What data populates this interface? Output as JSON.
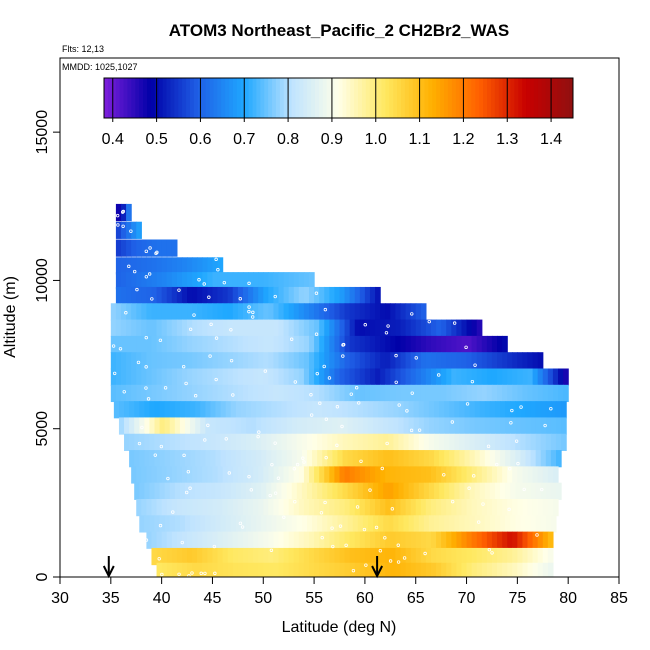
{
  "chart_data": {
    "type": "heatmap",
    "title": "ATOM3 Northeast_Pacific_2 CH2Br2_WAS",
    "flights_note": "Flts: 12,13",
    "dates_note": "MMDD: 1025,1027",
    "xlabel": "Latitude (deg N)",
    "ylabel": "Altitude (m)",
    "xlim": [
      30,
      85
    ],
    "ylim": [
      0,
      17500
    ],
    "x_ticks": [
      "30",
      "35",
      "40",
      "45",
      "50",
      "55",
      "60",
      "65",
      "70",
      "75",
      "80",
      "85"
    ],
    "y_ticks": [
      "0",
      "5000",
      "10000",
      "15000"
    ],
    "colorbar": {
      "range": [
        0.38,
        1.45
      ],
      "ticks": [
        "0.4",
        "0.5",
        "0.6",
        "0.7",
        "0.8",
        "0.9",
        "1.0",
        "1.1",
        "1.2",
        "1.3",
        "1.4"
      ],
      "colors": [
        "#7f1fdc",
        "#0000a8",
        "#1f5fe6",
        "#1fa8ff",
        "#bfe3ff",
        "#ffffe8",
        "#ffe860",
        "#ffb000",
        "#ff6000",
        "#c80000",
        "#901010"
      ]
    },
    "arrows_at_latitude": [
      34.8,
      61.2
    ],
    "layers": [
      {
        "alt": 12300,
        "lat_start": 35.5,
        "lat_end": 37.0,
        "values": [
          0.45,
          0.5,
          0.55,
          0.7
        ]
      },
      {
        "alt": 11700,
        "lat_start": 35.5,
        "lat_end": 38.0,
        "values": [
          0.55,
          0.6,
          0.65,
          0.7
        ]
      },
      {
        "alt": 11100,
        "lat_start": 35.5,
        "lat_end": 41.5,
        "values": [
          0.55,
          0.6,
          0.62,
          0.62
        ]
      },
      {
        "alt": 10500,
        "lat_start": 35.5,
        "lat_end": 46.0,
        "values": [
          0.6,
          0.62,
          0.65,
          0.7
        ]
      },
      {
        "alt": 10000,
        "lat_start": 35.5,
        "lat_end": 55.0,
        "values": [
          0.6,
          0.65,
          0.72,
          0.72,
          0.75
        ]
      },
      {
        "alt": 9500,
        "lat_start": 35.5,
        "lat_end": 61.5,
        "values": [
          0.62,
          0.6,
          0.5,
          0.55,
          0.7,
          0.78,
          0.68,
          0.5
        ]
      },
      {
        "alt": 8950,
        "lat_start": 35.0,
        "lat_end": 66.0,
        "values": [
          0.78,
          0.72,
          0.72,
          0.7,
          0.75,
          0.65,
          0.55,
          0.5,
          0.6
        ]
      },
      {
        "alt": 8400,
        "lat_start": 35.0,
        "lat_end": 71.5,
        "values": [
          0.78,
          0.75,
          0.8,
          0.82,
          0.82,
          0.75,
          0.5,
          0.52,
          0.6,
          0.45
        ]
      },
      {
        "alt": 7850,
        "lat_start": 35.0,
        "lat_end": 74.0,
        "values": [
          0.75,
          0.75,
          0.78,
          0.8,
          0.82,
          0.78,
          0.55,
          0.5,
          0.45,
          0.42,
          0.5
        ]
      },
      {
        "alt": 7300,
        "lat_start": 35.0,
        "lat_end": 77.5,
        "values": [
          0.72,
          0.75,
          0.76,
          0.78,
          0.8,
          0.75,
          0.6,
          0.52,
          0.62,
          0.6,
          0.55,
          0.5
        ]
      },
      {
        "alt": 6750,
        "lat_start": 35.0,
        "lat_end": 80.0,
        "values": [
          0.72,
          0.75,
          0.78,
          0.8,
          0.82,
          0.78,
          0.6,
          0.52,
          0.62,
          0.72,
          0.7,
          0.72,
          0.45
        ]
      },
      {
        "alt": 6200,
        "lat_start": 35.0,
        "lat_end": 79.8,
        "values": [
          0.74,
          0.76,
          0.78,
          0.8,
          0.82,
          0.8,
          0.75,
          0.76,
          0.76,
          0.78,
          0.75,
          0.73
        ]
      },
      {
        "alt": 5650,
        "lat_start": 35.3,
        "lat_end": 79.5,
        "values": [
          0.74,
          0.7,
          0.72,
          0.78,
          0.8,
          0.82,
          0.8,
          0.78,
          0.75,
          0.72,
          0.7,
          0.68
        ]
      },
      {
        "alt": 5100,
        "lat_start": 35.8,
        "lat_end": 79.5,
        "values": [
          0.78,
          1.0,
          0.82,
          0.8,
          0.84,
          0.86,
          0.82,
          0.78,
          0.76,
          0.75,
          0.74
        ]
      },
      {
        "alt": 4550,
        "lat_start": 36.3,
        "lat_end": 79.5,
        "values": [
          0.78,
          0.8,
          0.82,
          0.85,
          0.9,
          0.95,
          0.98,
          0.9,
          0.85,
          0.8,
          0.76
        ]
      },
      {
        "alt": 4000,
        "lat_start": 36.8,
        "lat_end": 79.3,
        "values": [
          0.76,
          0.78,
          0.8,
          0.84,
          0.9,
          1.05,
          1.1,
          1.05,
          0.95,
          0.85,
          0.72
        ]
      },
      {
        "alt": 3450,
        "lat_start": 37.0,
        "lat_end": 79.0,
        "values": [
          0.76,
          0.78,
          0.8,
          0.84,
          0.92,
          1.2,
          1.12,
          1.1,
          1.0,
          0.9,
          0.85
        ]
      },
      {
        "alt": 2900,
        "lat_start": 37.3,
        "lat_end": 79.0,
        "values": [
          0.76,
          0.8,
          0.82,
          0.86,
          0.95,
          1.05,
          1.15,
          1.05,
          0.95,
          0.9,
          0.88
        ]
      },
      {
        "alt": 2350,
        "lat_start": 37.5,
        "lat_end": 78.8,
        "values": [
          0.78,
          0.82,
          0.84,
          0.88,
          0.95,
          1.0,
          1.1,
          1.0,
          0.95,
          0.92,
          0.9
        ]
      },
      {
        "alt": 1800,
        "lat_start": 37.8,
        "lat_end": 78.8,
        "values": [
          0.78,
          0.8,
          0.84,
          0.88,
          0.92,
          0.98,
          1.05,
          0.98,
          0.95,
          0.92,
          0.9
        ]
      },
      {
        "alt": 1250,
        "lat_start": 38.5,
        "lat_end": 78.5,
        "values": [
          0.78,
          0.82,
          0.86,
          0.9,
          0.95,
          1.02,
          1.08,
          1.05,
          1.2,
          1.33,
          1.1
        ]
      },
      {
        "alt": 700,
        "lat_start": 39.0,
        "lat_end": 78.5,
        "values": [
          1.05,
          1.08,
          1.02,
          1.0,
          1.05,
          1.1,
          1.12,
          1.05,
          1.02,
          0.98,
          0.9
        ]
      },
      {
        "alt": 200,
        "lat_start": 39.5,
        "lat_end": 78.5,
        "values": [
          1.02,
          1.05,
          1.03,
          1.02,
          1.05,
          1.08,
          1.12,
          1.08,
          1.0,
          0.95,
          0.88
        ]
      }
    ]
  }
}
